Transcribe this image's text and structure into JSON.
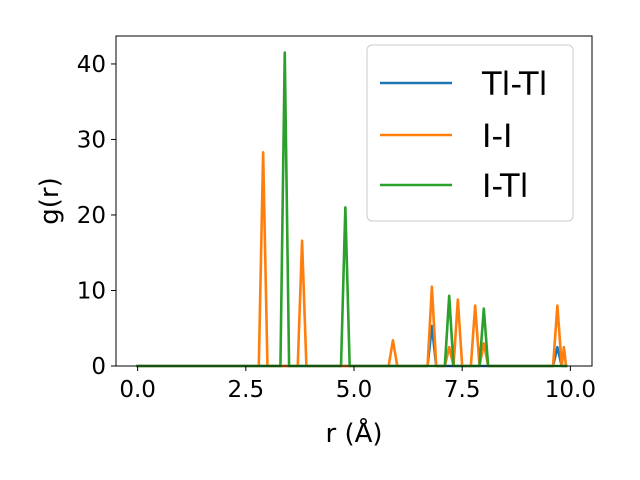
{
  "chart_data": {
    "type": "line",
    "title": "",
    "xlabel": "r (Å)",
    "ylabel": "g(r)",
    "xlim": [
      -0.5,
      10.5
    ],
    "ylim": [
      0,
      43.7
    ],
    "xticks": [
      0.0,
      2.5,
      5.0,
      7.5,
      10.0
    ],
    "xtick_labels": [
      "0.0",
      "2.5",
      "5.0",
      "7.5",
      "10.0"
    ],
    "yticks": [
      0,
      10,
      20,
      30,
      40
    ],
    "ytick_labels": [
      "0",
      "10",
      "20",
      "30",
      "40"
    ],
    "grid": false,
    "legend_position": "top-right",
    "series": [
      {
        "name": "Tl-Tl",
        "color": "#1f77b4",
        "points": [
          [
            0.0,
            0
          ],
          [
            6.7,
            0
          ],
          [
            6.8,
            5.3
          ],
          [
            6.9,
            0
          ],
          [
            9.6,
            0
          ],
          [
            9.7,
            2.5
          ],
          [
            9.8,
            0
          ],
          [
            9.9,
            0
          ]
        ]
      },
      {
        "name": "I-I",
        "color": "#ff7f0e",
        "points": [
          [
            0.0,
            0
          ],
          [
            2.8,
            0
          ],
          [
            2.9,
            28.3
          ],
          [
            3.0,
            0
          ],
          [
            3.7,
            0
          ],
          [
            3.8,
            16.6
          ],
          [
            3.9,
            0
          ],
          [
            5.8,
            0
          ],
          [
            5.9,
            3.4
          ],
          [
            6.0,
            0
          ],
          [
            6.7,
            0
          ],
          [
            6.8,
            10.5
          ],
          [
            6.9,
            0
          ],
          [
            7.1,
            0
          ],
          [
            7.2,
            2.5
          ],
          [
            7.3,
            0
          ],
          [
            7.4,
            8.8
          ],
          [
            7.5,
            0
          ],
          [
            7.7,
            0
          ],
          [
            7.8,
            8.0
          ],
          [
            7.9,
            0
          ],
          [
            8.0,
            3.0
          ],
          [
            8.1,
            0
          ],
          [
            9.6,
            0
          ],
          [
            9.7,
            8.0
          ],
          [
            9.8,
            0
          ],
          [
            9.85,
            2.5
          ],
          [
            9.9,
            0
          ]
        ]
      },
      {
        "name": "I-Tl",
        "color": "#2ca02c",
        "points": [
          [
            0.0,
            0
          ],
          [
            3.3,
            0
          ],
          [
            3.4,
            41.5
          ],
          [
            3.5,
            0
          ],
          [
            4.7,
            0
          ],
          [
            4.8,
            21.0
          ],
          [
            4.9,
            0
          ],
          [
            7.1,
            0
          ],
          [
            7.2,
            9.3
          ],
          [
            7.3,
            0
          ],
          [
            7.9,
            0
          ],
          [
            8.0,
            7.6
          ],
          [
            8.1,
            0
          ],
          [
            9.9,
            0
          ]
        ]
      }
    ]
  }
}
